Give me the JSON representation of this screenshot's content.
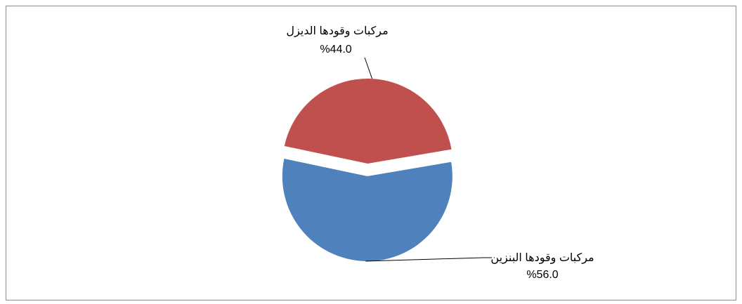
{
  "chart_data": {
    "type": "pie",
    "title": "",
    "slices": [
      {
        "label": "مركبات وقودها الديزل",
        "value": 44.0,
        "value_label": "%44.0",
        "color": "#C0504D"
      },
      {
        "label": "مركبات وقودها البنزين",
        "value": 56.0,
        "value_label": "%56.0",
        "color": "#4F81BD"
      }
    ],
    "exploded": true,
    "legend": "none",
    "data_labels": "outside-with-leader-lines"
  }
}
